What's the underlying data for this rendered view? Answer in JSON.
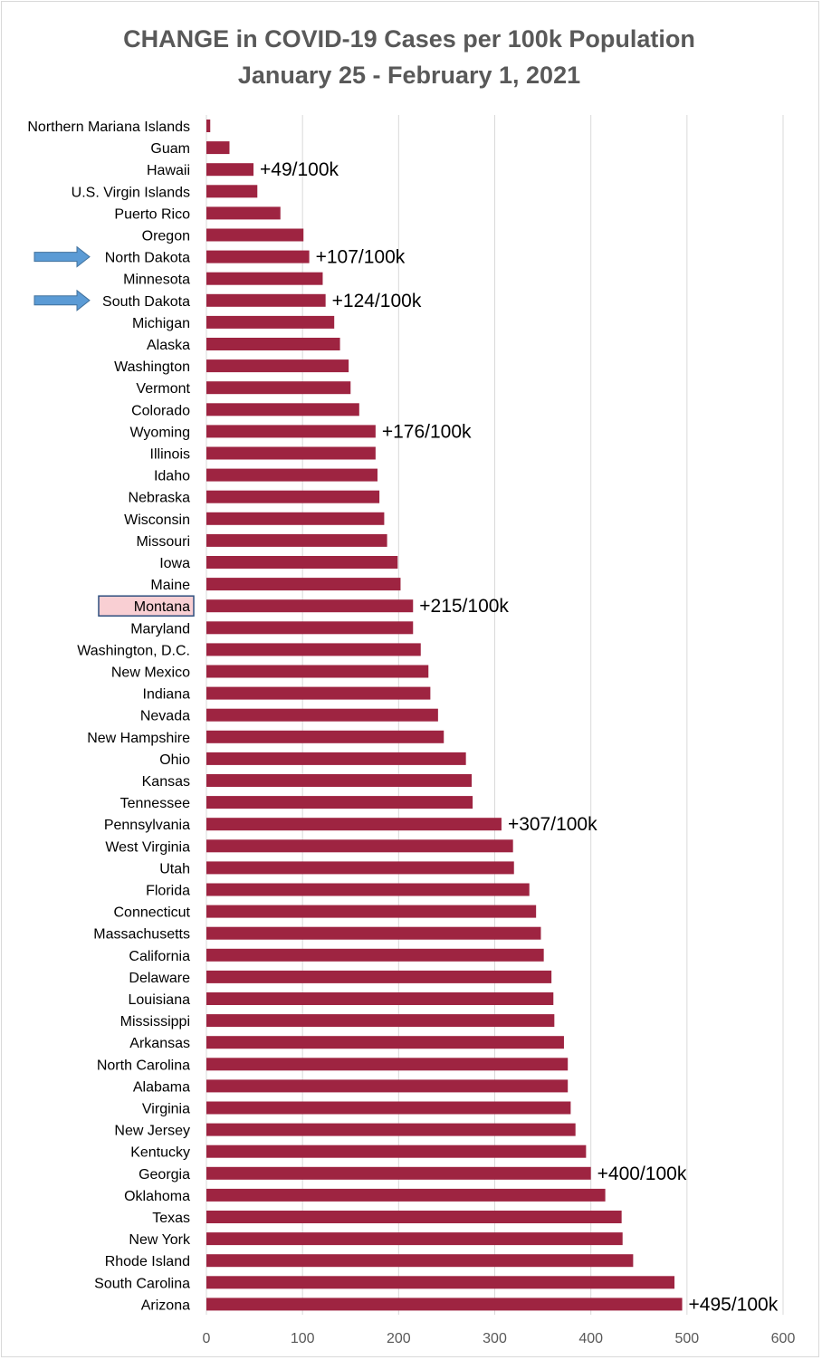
{
  "colors": {
    "bar": "#9e2441",
    "grid": "#d9d9d9",
    "title": "#595959",
    "highlight_fill": "#f9cfd3",
    "highlight_border": "#2f4f7f",
    "arrow_fill": "#5b9bd5",
    "arrow_border": "#41719c"
  },
  "chart_data": {
    "type": "bar",
    "orientation": "horizontal",
    "title": "CHANGE in COVID-19 Cases per 100k Population",
    "subtitle": "January 25 - February 1, 2021",
    "xlim": [
      0,
      600
    ],
    "xticks": [
      "0",
      "100",
      "200",
      "300",
      "400",
      "500",
      "600"
    ],
    "grid": "vertical",
    "categories": [
      "Northern Mariana Islands",
      "Guam",
      "Hawaii",
      "U.S. Virgin Islands",
      "Puerto Rico",
      "Oregon",
      "North Dakota",
      "Minnesota",
      "South Dakota",
      "Michigan",
      "Alaska",
      "Washington",
      "Vermont",
      "Colorado",
      "Wyoming",
      "Illinois",
      "Idaho",
      "Nebraska",
      "Wisconsin",
      "Missouri",
      "Iowa",
      "Maine",
      "Montana",
      "Maryland",
      "Washington, D.C.",
      "New Mexico",
      "Indiana",
      "Nevada",
      "New Hampshire",
      "Ohio",
      "Kansas",
      "Tennessee",
      "Pennsylvania",
      "West Virginia",
      "Utah",
      "Florida",
      "Connecticut",
      "Massachusetts",
      "California",
      "Delaware",
      "Louisiana",
      "Mississippi",
      "Arkansas",
      "North Carolina",
      "Alabama",
      "Virginia",
      "New Jersey",
      "Kentucky",
      "Georgia",
      "Oklahoma",
      "Texas",
      "New York",
      "Rhode Island",
      "South Carolina",
      "Arizona"
    ],
    "values": [
      4,
      24,
      49,
      53,
      77,
      101,
      107,
      121,
      124,
      133,
      139,
      148,
      150,
      159,
      176,
      176,
      178,
      180,
      185,
      188,
      199,
      202,
      215,
      215,
      223,
      231,
      233,
      241,
      247,
      270,
      276,
      277,
      307,
      319,
      320,
      336,
      343,
      348,
      351,
      359,
      361,
      362,
      372,
      376,
      376,
      379,
      384,
      395,
      400,
      415,
      432,
      433,
      444,
      487,
      495
    ],
    "annotations": [
      {
        "category": "Hawaii",
        "text": "+49/100k"
      },
      {
        "category": "North Dakota",
        "text": "+107/100k"
      },
      {
        "category": "South Dakota",
        "text": "+124/100k"
      },
      {
        "category": "Wyoming",
        "text": "+176/100k"
      },
      {
        "category": "Montana",
        "text": "+215/100k"
      },
      {
        "category": "Pennsylvania",
        "text": "+307/100k"
      },
      {
        "category": "Georgia",
        "text": "+400/100k"
      },
      {
        "category": "Arizona",
        "text": "+495/100k"
      }
    ],
    "arrow_markers": [
      "North Dakota",
      "South Dakota"
    ],
    "highlighted_category": "Montana"
  }
}
